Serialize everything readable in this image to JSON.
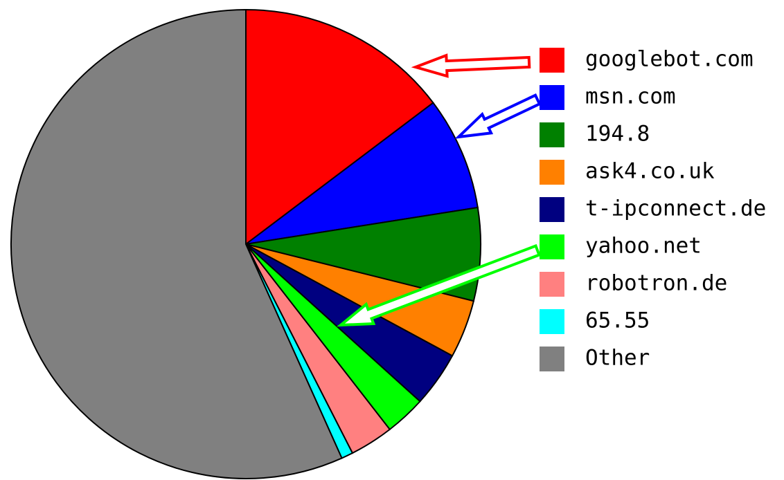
{
  "chart_data": {
    "type": "pie",
    "categories": [
      "googlebot.com",
      "msn.com",
      "194.8",
      "ask4.co.uk",
      "t-ipconnect.de",
      "yahoo.net",
      "robotron.de",
      "65.55",
      "Other"
    ],
    "values": [
      14.7,
      7.8,
      6.4,
      4.0,
      3.8,
      2.8,
      3.0,
      0.8,
      56.7
    ],
    "colors": [
      "#ff0000",
      "#0000ff",
      "#008000",
      "#ff8000",
      "#000080",
      "#00ff00",
      "#ff8080",
      "#00ffff",
      "#808080"
    ]
  }
}
